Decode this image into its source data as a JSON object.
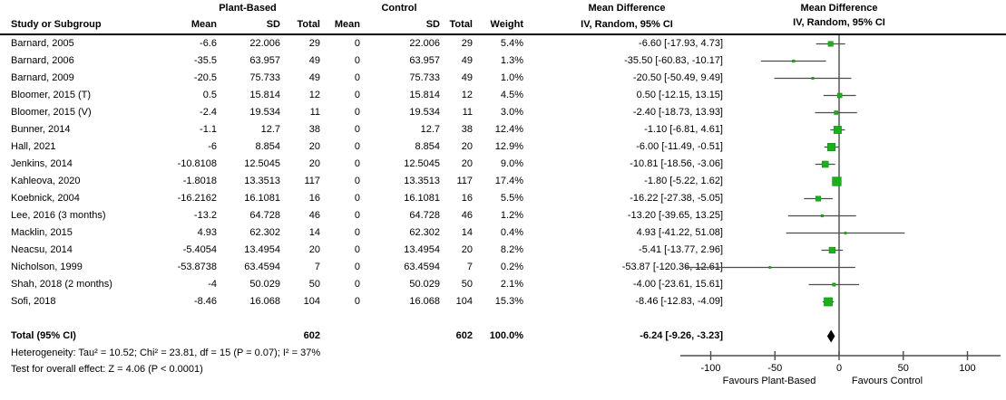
{
  "header": {
    "study_col": "Study or Subgroup",
    "group1_label": "Plant-Based",
    "group2_label": "Control",
    "mean_label": "Mean",
    "sd_label": "SD",
    "total_label": "Total",
    "weight_label": "Weight",
    "md_title_stat": "Mean Difference",
    "md_sub_stat": "IV, Random, 95% CI",
    "md_title_plot": "Mean Difference",
    "md_sub_plot": "IV, Random, 95% CI"
  },
  "studies": [
    {
      "name": "Barnard, 2005",
      "mean1": "-6.6",
      "sd1": "22.006",
      "n1": "29",
      "mean2": "0",
      "sd2": "22.006",
      "n2": "29",
      "weight": "5.4%",
      "ci": "-6.60 [-17.93, 4.73]"
    },
    {
      "name": "Barnard, 2006",
      "mean1": "-35.5",
      "sd1": "63.957",
      "n1": "49",
      "mean2": "0",
      "sd2": "63.957",
      "n2": "49",
      "weight": "1.3%",
      "ci": "-35.50 [-60.83, -10.17]"
    },
    {
      "name": "Barnard, 2009",
      "mean1": "-20.5",
      "sd1": "75.733",
      "n1": "49",
      "mean2": "0",
      "sd2": "75.733",
      "n2": "49",
      "weight": "1.0%",
      "ci": "-20.50 [-50.49, 9.49]"
    },
    {
      "name": "Bloomer, 2015 (T)",
      "mean1": "0.5",
      "sd1": "15.814",
      "n1": "12",
      "mean2": "0",
      "sd2": "15.814",
      "n2": "12",
      "weight": "4.5%",
      "ci": "0.50 [-12.15, 13.15]"
    },
    {
      "name": "Bloomer, 2015 (V)",
      "mean1": "-2.4",
      "sd1": "19.534",
      "n1": "11",
      "mean2": "0",
      "sd2": "19.534",
      "n2": "11",
      "weight": "3.0%",
      "ci": "-2.40 [-18.73, 13.93]"
    },
    {
      "name": "Bunner, 2014",
      "mean1": "-1.1",
      "sd1": "12.7",
      "n1": "38",
      "mean2": "0",
      "sd2": "12.7",
      "n2": "38",
      "weight": "12.4%",
      "ci": "-1.10 [-6.81, 4.61]"
    },
    {
      "name": "Hall, 2021",
      "mean1": "-6",
      "sd1": "8.854",
      "n1": "20",
      "mean2": "0",
      "sd2": "8.854",
      "n2": "20",
      "weight": "12.9%",
      "ci": "-6.00 [-11.49, -0.51]"
    },
    {
      "name": "Jenkins, 2014",
      "mean1": "-10.8108",
      "sd1": "12.5045",
      "n1": "20",
      "mean2": "0",
      "sd2": "12.5045",
      "n2": "20",
      "weight": "9.0%",
      "ci": "-10.81 [-18.56, -3.06]"
    },
    {
      "name": "Kahleova, 2020",
      "mean1": "-1.8018",
      "sd1": "13.3513",
      "n1": "117",
      "mean2": "0",
      "sd2": "13.3513",
      "n2": "117",
      "weight": "17.4%",
      "ci": "-1.80 [-5.22, 1.62]"
    },
    {
      "name": "Koebnick, 2004",
      "mean1": "-16.2162",
      "sd1": "16.1081",
      "n1": "16",
      "mean2": "0",
      "sd2": "16.1081",
      "n2": "16",
      "weight": "5.5%",
      "ci": "-16.22 [-27.38, -5.05]"
    },
    {
      "name": "Lee, 2016 (3 months)",
      "mean1": "-13.2",
      "sd1": "64.728",
      "n1": "46",
      "mean2": "0",
      "sd2": "64.728",
      "n2": "46",
      "weight": "1.2%",
      "ci": "-13.20 [-39.65, 13.25]"
    },
    {
      "name": "Macklin, 2015",
      "mean1": "4.93",
      "sd1": "62.302",
      "n1": "14",
      "mean2": "0",
      "sd2": "62.302",
      "n2": "14",
      "weight": "0.4%",
      "ci": "4.93 [-41.22, 51.08]"
    },
    {
      "name": "Neacsu, 2014",
      "mean1": "-5.4054",
      "sd1": "13.4954",
      "n1": "20",
      "mean2": "0",
      "sd2": "13.4954",
      "n2": "20",
      "weight": "8.2%",
      "ci": "-5.41 [-13.77, 2.96]"
    },
    {
      "name": "Nicholson, 1999",
      "mean1": "-53.8738",
      "sd1": "63.4594",
      "n1": "7",
      "mean2": "0",
      "sd2": "63.4594",
      "n2": "7",
      "weight": "0.2%",
      "ci": "-53.87 [-120.36, 12.61]"
    },
    {
      "name": "Shah, 2018 (2 months)",
      "mean1": "-4",
      "sd1": "50.029",
      "n1": "50",
      "mean2": "0",
      "sd2": "50.029",
      "n2": "50",
      "weight": "2.1%",
      "ci": "-4.00 [-23.61, 15.61]"
    },
    {
      "name": "Sofi, 2018",
      "mean1": "-8.46",
      "sd1": "16.068",
      "n1": "104",
      "mean2": "0",
      "sd2": "16.068",
      "n2": "104",
      "weight": "15.3%",
      "ci": "-8.46 [-12.83, -4.09]"
    }
  ],
  "total_row": {
    "label": "Total (95% CI)",
    "n1": "602",
    "n2": "602",
    "weight": "100.0%",
    "ci": "-6.24 [-9.26, -3.23]"
  },
  "footnotes": {
    "heterogeneity": "Heterogeneity: Tau² = 10.52; Chi² = 23.81, df = 15 (P = 0.07); I² = 37%",
    "overall_effect": "Test for overall effect: Z = 4.06 (P < 0.0001)"
  },
  "axis": {
    "ticks": [
      -100,
      -50,
      0,
      50,
      100
    ],
    "tick_labels": [
      "-100",
      "-50",
      "0",
      "50",
      "100"
    ],
    "favours_left": "Favours Plant-Based",
    "favours_right": "Favours Control"
  },
  "colors": {
    "marker_green": "#17b217",
    "marker_edge": "#0c8a0c",
    "line_gray": "#4d4d4d",
    "diamond_black": "#000000",
    "text_black": "#000000"
  },
  "chart_data": {
    "type": "forest",
    "title": "Mean Difference, IV, Random, 95% CI",
    "effect_measure": "Mean Difference",
    "model": "IV, Random, 95% CI",
    "axis_range": [
      -100,
      100
    ],
    "axis_ticks": [
      -100,
      -50,
      0,
      50,
      100
    ],
    "favours_left": "Favours Plant-Based",
    "favours_right": "Favours Control",
    "studies": [
      {
        "name": "Barnard, 2005",
        "est": -6.6,
        "lo": -17.93,
        "hi": 4.73,
        "weight_pct": 5.4
      },
      {
        "name": "Barnard, 2006",
        "est": -35.5,
        "lo": -60.83,
        "hi": -10.17,
        "weight_pct": 1.3
      },
      {
        "name": "Barnard, 2009",
        "est": -20.5,
        "lo": -50.49,
        "hi": 9.49,
        "weight_pct": 1.0
      },
      {
        "name": "Bloomer, 2015 (T)",
        "est": 0.5,
        "lo": -12.15,
        "hi": 13.15,
        "weight_pct": 4.5
      },
      {
        "name": "Bloomer, 2015 (V)",
        "est": -2.4,
        "lo": -18.73,
        "hi": 13.93,
        "weight_pct": 3.0
      },
      {
        "name": "Bunner, 2014",
        "est": -1.1,
        "lo": -6.81,
        "hi": 4.61,
        "weight_pct": 12.4
      },
      {
        "name": "Hall, 2021",
        "est": -6.0,
        "lo": -11.49,
        "hi": -0.51,
        "weight_pct": 12.9
      },
      {
        "name": "Jenkins, 2014",
        "est": -10.81,
        "lo": -18.56,
        "hi": -3.06,
        "weight_pct": 9.0
      },
      {
        "name": "Kahleova, 2020",
        "est": -1.8,
        "lo": -5.22,
        "hi": 1.62,
        "weight_pct": 17.4
      },
      {
        "name": "Koebnick, 2004",
        "est": -16.22,
        "lo": -27.38,
        "hi": -5.05,
        "weight_pct": 5.5
      },
      {
        "name": "Lee, 2016 (3 months)",
        "est": -13.2,
        "lo": -39.65,
        "hi": 13.25,
        "weight_pct": 1.2
      },
      {
        "name": "Macklin, 2015",
        "est": 4.93,
        "lo": -41.22,
        "hi": 51.08,
        "weight_pct": 0.4
      },
      {
        "name": "Neacsu, 2014",
        "est": -5.41,
        "lo": -13.77,
        "hi": 2.96,
        "weight_pct": 8.2
      },
      {
        "name": "Nicholson, 1999",
        "est": -53.87,
        "lo": -120.36,
        "hi": 12.61,
        "weight_pct": 0.2
      },
      {
        "name": "Shah, 2018 (2 months)",
        "est": -4.0,
        "lo": -23.61,
        "hi": 15.61,
        "weight_pct": 2.1
      },
      {
        "name": "Sofi, 2018",
        "est": -8.46,
        "lo": -12.83,
        "hi": -4.09,
        "weight_pct": 15.3
      }
    ],
    "total": {
      "label": "Total (95% CI)",
      "est": -6.24,
      "lo": -9.26,
      "hi": -3.23,
      "n1": 602,
      "n2": 602,
      "weight_pct": 100.0
    },
    "heterogeneity": {
      "tau2": 10.52,
      "chi2": 23.81,
      "df": 15,
      "p": "0.07",
      "i2_pct": 37
    },
    "overall_effect": {
      "z": 4.06,
      "p": "< 0.0001"
    }
  }
}
